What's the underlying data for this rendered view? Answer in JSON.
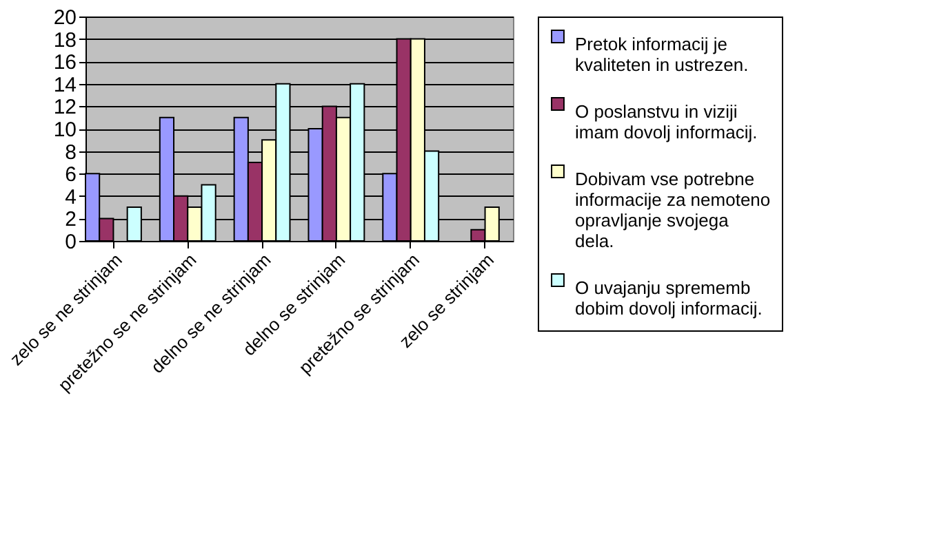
{
  "chart_data": {
    "type": "bar",
    "categories": [
      "zelo se ne strinjam",
      "pretežno se ne strinjam",
      "delno se ne strinjam",
      "delno se  strinjam",
      "pretežno se  strinjam",
      "zelo se strinjam"
    ],
    "series": [
      {
        "name": "Pretok informacij je kvaliteten in ustrezen.",
        "color": "#9999ff",
        "values": [
          6,
          11,
          11,
          10,
          6,
          null
        ]
      },
      {
        "name": "O poslanstvu in viziji imam dovolj informacij.",
        "color": "#993366",
        "values": [
          2,
          4,
          7,
          12,
          18,
          1
        ]
      },
      {
        "name": "Dobivam vse potrebne informacije za nemoteno opravljanje svojega dela.",
        "color": "#ffffcc",
        "values": [
          null,
          3,
          9,
          11,
          18,
          3
        ]
      },
      {
        "name": "O uvajanju sprememb dobim dovolj informacij.",
        "color": "#ccffff",
        "values": [
          3,
          5,
          14,
          14,
          8,
          null
        ]
      }
    ],
    "ylim": [
      0,
      20
    ],
    "yticks": [
      0,
      2,
      4,
      6,
      8,
      10,
      12,
      14,
      16,
      18,
      20
    ],
    "grid": "y",
    "legend": "right"
  }
}
